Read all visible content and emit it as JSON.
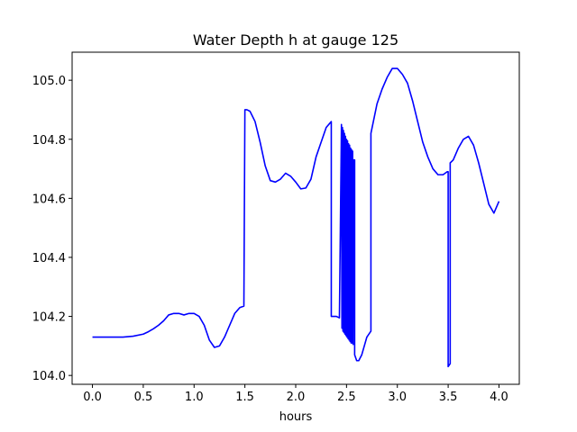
{
  "chart_data": {
    "type": "line",
    "title": "Water Depth h at gauge 125",
    "xlabel": "hours",
    "ylabel": "",
    "xlim": [
      -0.2,
      4.2
    ],
    "ylim": [
      103.97,
      105.095
    ],
    "x_ticks": [
      0.0,
      0.5,
      1.0,
      1.5,
      2.0,
      2.5,
      3.0,
      3.5,
      4.0
    ],
    "x_tick_labels": [
      "0.0",
      "0.5",
      "1.0",
      "1.5",
      "2.0",
      "2.5",
      "3.0",
      "3.5",
      "4.0"
    ],
    "y_ticks": [
      104.0,
      104.2,
      104.4,
      104.6,
      104.8,
      105.0
    ],
    "y_tick_labels": [
      "104.0",
      "104.2",
      "104.4",
      "104.6",
      "104.8",
      "105.0"
    ],
    "grid": false,
    "series": [
      {
        "color": "#0000ff",
        "x": [
          0.0,
          0.1,
          0.2,
          0.3,
          0.4,
          0.5,
          0.55,
          0.6,
          0.65,
          0.7,
          0.75,
          0.8,
          0.85,
          0.9,
          0.95,
          1.0,
          1.05,
          1.1,
          1.15,
          1.2,
          1.25,
          1.3,
          1.35,
          1.4,
          1.45,
          1.49,
          1.5,
          1.52,
          1.55,
          1.6,
          1.65,
          1.7,
          1.75,
          1.8,
          1.85,
          1.9,
          1.95,
          2.0,
          2.05,
          2.1,
          2.15,
          2.2,
          2.25,
          2.3,
          2.35,
          2.35,
          2.4,
          2.43,
          2.45,
          2.455,
          2.46,
          2.465,
          2.47,
          2.475,
          2.48,
          2.485,
          2.49,
          2.495,
          2.5,
          2.505,
          2.51,
          2.515,
          2.52,
          2.525,
          2.53,
          2.535,
          2.54,
          2.545,
          2.55,
          2.555,
          2.56,
          2.565,
          2.57,
          2.58,
          2.58,
          2.6,
          2.62,
          2.65,
          2.7,
          2.74,
          2.74,
          2.8,
          2.85,
          2.9,
          2.95,
          3.0,
          3.05,
          3.1,
          3.15,
          3.2,
          3.25,
          3.3,
          3.35,
          3.4,
          3.45,
          3.49,
          3.5,
          3.5,
          3.52,
          3.52,
          3.55,
          3.6,
          3.65,
          3.7,
          3.75,
          3.8,
          3.85,
          3.9,
          3.95,
          4.0
        ],
        "y": [
          104.13,
          104.13,
          104.13,
          104.13,
          104.133,
          104.14,
          104.148,
          104.158,
          104.17,
          104.185,
          104.205,
          104.21,
          104.21,
          104.205,
          104.21,
          104.21,
          104.2,
          104.17,
          104.12,
          104.095,
          104.1,
          104.13,
          104.17,
          104.21,
          104.23,
          104.235,
          104.9,
          104.9,
          104.895,
          104.86,
          104.79,
          104.71,
          104.66,
          104.655,
          104.665,
          104.685,
          104.675,
          104.655,
          104.632,
          104.635,
          104.665,
          104.74,
          104.79,
          104.84,
          104.86,
          104.2,
          104.2,
          104.195,
          104.85,
          104.16,
          104.84,
          104.15,
          104.83,
          104.145,
          104.82,
          104.14,
          104.81,
          104.135,
          104.8,
          104.13,
          104.795,
          104.125,
          104.785,
          104.12,
          104.78,
          104.115,
          104.77,
          104.11,
          104.765,
          104.11,
          104.76,
          104.105,
          104.73,
          104.73,
          104.07,
          104.05,
          104.05,
          104.07,
          104.13,
          104.15,
          104.82,
          104.92,
          104.97,
          105.01,
          105.04,
          105.04,
          105.02,
          104.99,
          104.93,
          104.86,
          104.79,
          104.74,
          104.7,
          104.68,
          104.68,
          104.69,
          104.69,
          104.03,
          104.04,
          104.72,
          104.73,
          104.77,
          104.8,
          104.81,
          104.78,
          104.72,
          104.65,
          104.58,
          104.55,
          104.59
        ]
      }
    ]
  }
}
